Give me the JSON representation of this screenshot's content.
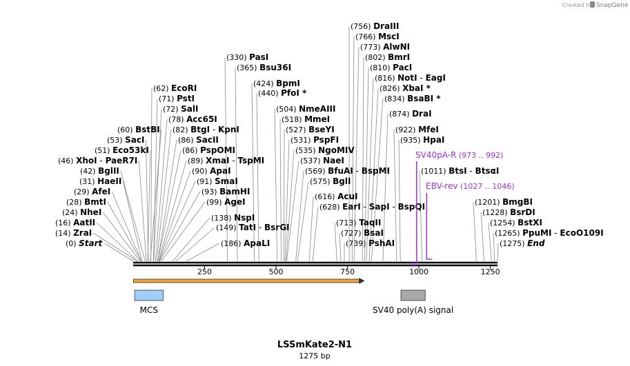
{
  "credit": {
    "prefix": "Created by",
    "brand": "SnapGene"
  },
  "sequence": {
    "name": "LSSmKate2-N1",
    "length_label": "1275 bp",
    "length": 1275
  },
  "ruler": {
    "ticks": [
      "250",
      "500",
      "750",
      "1000",
      "1250"
    ]
  },
  "colors": {
    "primer": "#9b30d9",
    "orf": "#f4a23a",
    "mcs": "#9fcff7",
    "polyA": "#a8a8a8"
  },
  "sites": [
    {
      "id": "start",
      "name": "Start",
      "pos": "(0)",
      "bp": 0,
      "style": "italic"
    },
    {
      "id": "zrai",
      "name": "ZraI",
      "pos": "(14)",
      "bp": 14
    },
    {
      "id": "aatii",
      "name": "AatII",
      "pos": "(16)",
      "bp": 16
    },
    {
      "id": "nhei",
      "name": "NheI",
      "pos": "(24)",
      "bp": 24
    },
    {
      "id": "bmti",
      "name": "BmtI",
      "pos": "(28)",
      "bp": 28
    },
    {
      "id": "afei",
      "name": "AfeI",
      "pos": "(29)",
      "bp": 29
    },
    {
      "id": "haeii",
      "name": "HaeII",
      "pos": "(31)",
      "bp": 31
    },
    {
      "id": "bglii",
      "name": "BglII",
      "pos": "(42)",
      "bp": 42
    },
    {
      "id": "xhoi",
      "name": "XhoI",
      "name2": "PaeR7I",
      "pos": "(46)",
      "bp": 46
    },
    {
      "id": "eco53ki",
      "name": "Eco53kI",
      "pos": "(51)",
      "bp": 51
    },
    {
      "id": "saci",
      "name": "SacI",
      "pos": "(53)",
      "bp": 53
    },
    {
      "id": "bstbi",
      "name": "BstBI",
      "pos": "(60)",
      "bp": 60
    },
    {
      "id": "ecori",
      "name": "EcoRI",
      "pos": "(62)",
      "bp": 62
    },
    {
      "id": "psti",
      "name": "PstI",
      "pos": "(71)",
      "bp": 71
    },
    {
      "id": "sali",
      "name": "SalI",
      "pos": "(72)",
      "bp": 72
    },
    {
      "id": "acc65i",
      "name": "Acc65I",
      "pos": "(78)",
      "bp": 78
    },
    {
      "id": "btgi",
      "name": "BtgI",
      "name2": "KpnI",
      "pos": "(82)",
      "bp": 82
    },
    {
      "id": "sacii",
      "name": "SacII",
      "pos": "(86)",
      "bp": 86
    },
    {
      "id": "pspomi",
      "name": "PspOMI",
      "pos": "(86)",
      "bp": 86
    },
    {
      "id": "xmai",
      "name": "XmaI",
      "name2": "TspMI",
      "pos": "(89)",
      "bp": 89
    },
    {
      "id": "apai",
      "name": "ApaI",
      "pos": "(90)",
      "bp": 90
    },
    {
      "id": "smai",
      "name": "SmaI",
      "pos": "(91)",
      "bp": 91
    },
    {
      "id": "bamhi",
      "name": "BamHI",
      "pos": "(93)",
      "bp": 93
    },
    {
      "id": "agei",
      "name": "AgeI",
      "pos": "(99)",
      "bp": 99
    },
    {
      "id": "nspi",
      "name": "NspI",
      "pos": "(138)",
      "bp": 138
    },
    {
      "id": "tati",
      "name": "TatI",
      "name2": "BsrGI",
      "pos": "(149)",
      "bp": 149
    },
    {
      "id": "apali",
      "name": "ApaLI",
      "pos": "(186)",
      "bp": 186
    },
    {
      "id": "pasi",
      "name": "PasI",
      "pos": "(330)",
      "bp": 330
    },
    {
      "id": "bsu36i",
      "name": "Bsu36I",
      "pos": "(365)",
      "bp": 365
    },
    {
      "id": "bpmi",
      "name": "BpmI",
      "pos": "(424)",
      "bp": 424
    },
    {
      "id": "pfoi",
      "name": "PfoI *",
      "pos": "(440)",
      "bp": 440
    },
    {
      "id": "nmeaiii",
      "name": "NmeAIII",
      "pos": "(504)",
      "bp": 504
    },
    {
      "id": "mmei",
      "name": "MmeI",
      "pos": "(518)",
      "bp": 518
    },
    {
      "id": "bseyi",
      "name": "BseYI",
      "pos": "(527)",
      "bp": 527
    },
    {
      "id": "pspfi",
      "name": "PspFI",
      "pos": "(531)",
      "bp": 531
    },
    {
      "id": "ngomiv",
      "name": "NgoMIV",
      "pos": "(535)",
      "bp": 535
    },
    {
      "id": "naei",
      "name": "NaeI",
      "pos": "(537)",
      "bp": 537
    },
    {
      "id": "bfuai",
      "name": "BfuAI",
      "name2": "BspMI",
      "pos": "(569)",
      "bp": 569
    },
    {
      "id": "bgli",
      "name": "BglI",
      "pos": "(575)",
      "bp": 575
    },
    {
      "id": "acui",
      "name": "AcuI",
      "pos": "(616)",
      "bp": 616
    },
    {
      "id": "eari",
      "name": "EarI",
      "name2": "SapI",
      "name3": "BspQI",
      "pos": "(628)",
      "bp": 628
    },
    {
      "id": "taqii",
      "name": "TaqII",
      "pos": "(713)",
      "bp": 713
    },
    {
      "id": "bsai",
      "name": "BsaI",
      "pos": "(727)",
      "bp": 727
    },
    {
      "id": "pshai",
      "name": "PshAI",
      "pos": "(739)",
      "bp": 739
    },
    {
      "id": "draiii",
      "name": "DraIII",
      "pos": "(756)",
      "bp": 756
    },
    {
      "id": "msci",
      "name": "MscI",
      "pos": "(766)",
      "bp": 766
    },
    {
      "id": "alwni",
      "name": "AlwNI",
      "pos": "(773)",
      "bp": 773
    },
    {
      "id": "bmri",
      "name": "BmrI",
      "pos": "(802)",
      "bp": 802
    },
    {
      "id": "paci",
      "name": "PacI",
      "pos": "(810)",
      "bp": 810
    },
    {
      "id": "noti",
      "name": "NotI",
      "name2": "EagI",
      "pos": "(816)",
      "bp": 816
    },
    {
      "id": "xbai",
      "name": "XbaI *",
      "pos": "(826)",
      "bp": 826
    },
    {
      "id": "bsabi",
      "name": "BsaBI *",
      "pos": "(834)",
      "bp": 834
    },
    {
      "id": "drai",
      "name": "DraI",
      "pos": "(874)",
      "bp": 874
    },
    {
      "id": "mfei",
      "name": "MfeI",
      "pos": "(922)",
      "bp": 922
    },
    {
      "id": "hpai",
      "name": "HpaI",
      "pos": "(935)",
      "bp": 935
    },
    {
      "id": "btsi",
      "name": "BtsI",
      "name2": "BtsαI",
      "pos": "(1011)",
      "bp": 1011
    },
    {
      "id": "bmgbi",
      "name": "BmgBI",
      "pos": "(1201)",
      "bp": 1201
    },
    {
      "id": "bsrdi",
      "name": "BsrDI",
      "pos": "(1228)",
      "bp": 1228
    },
    {
      "id": "bstxi",
      "name": "BstXI",
      "pos": "(1254)",
      "bp": 1254
    },
    {
      "id": "pupmi",
      "name": "PpuMI",
      "name2": "EcoO109I",
      "pos": "(1265)",
      "bp": 1265
    },
    {
      "id": "end",
      "name": "End",
      "pos": "(1275)",
      "bp": 1275,
      "style": "italic"
    }
  ],
  "primers": [
    {
      "id": "sv40pa-r",
      "name": "SV40pA-R",
      "range": "(973 .. 992)",
      "start": 973,
      "end": 992
    },
    {
      "id": "ebv-rev",
      "name": "EBV-rev",
      "range": "(1027 .. 1046)",
      "start": 1027,
      "end": 1046
    }
  ],
  "features": [
    {
      "id": "orf",
      "name": "",
      "start": 1,
      "end": 810,
      "type": "arrow"
    },
    {
      "id": "mcs",
      "name": "MCS",
      "start": 5,
      "end": 105,
      "type": "box"
    },
    {
      "id": "polya",
      "name": "SV40 poly(A) signal",
      "start": 937,
      "end": 1022,
      "type": "box"
    }
  ]
}
